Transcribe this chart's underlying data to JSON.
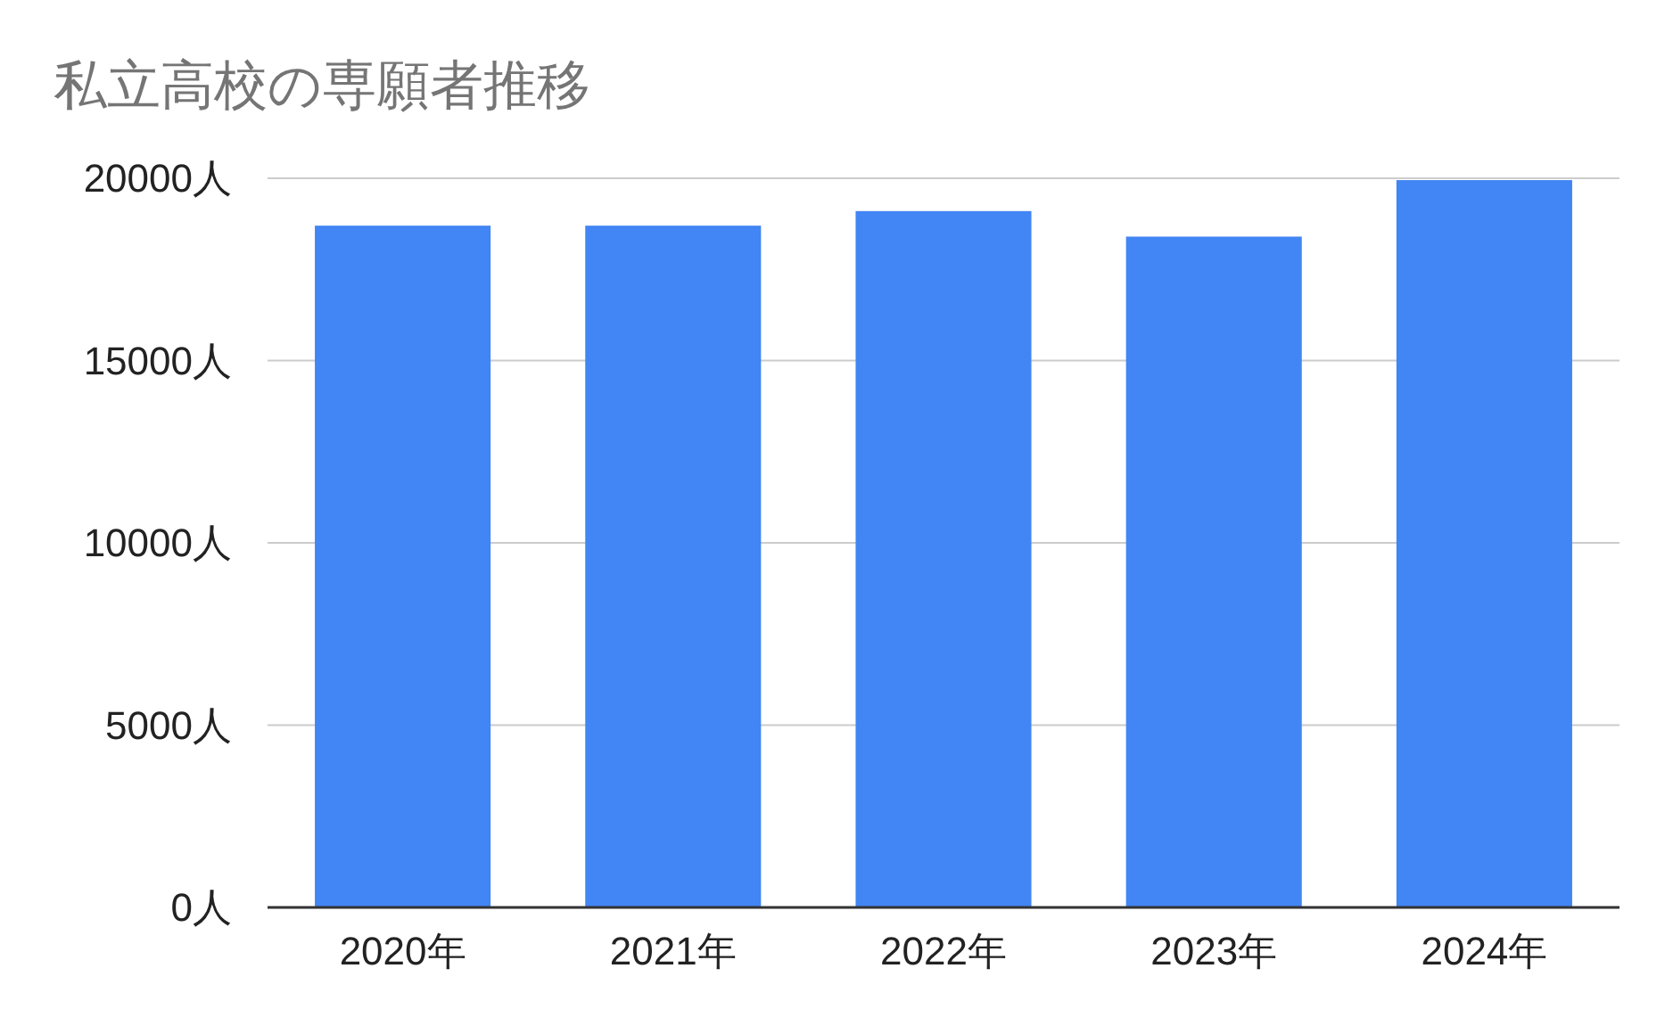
{
  "chart_data": {
    "type": "bar",
    "title": "私立高校の専願者推移",
    "categories": [
      "2020年",
      "2021年",
      "2022年",
      "2023年",
      "2024年"
    ],
    "values": [
      18700,
      18700,
      19100,
      18400,
      19950
    ],
    "color": "#4285f4",
    "ylim": [
      0,
      20000
    ],
    "yticks": [
      {
        "value": 0,
        "label": "0人"
      },
      {
        "value": 5000,
        "label": "5000人"
      },
      {
        "value": 10000,
        "label": "10000人"
      },
      {
        "value": 15000,
        "label": "15000人"
      },
      {
        "value": 20000,
        "label": "20000人"
      }
    ],
    "grid": "y"
  }
}
